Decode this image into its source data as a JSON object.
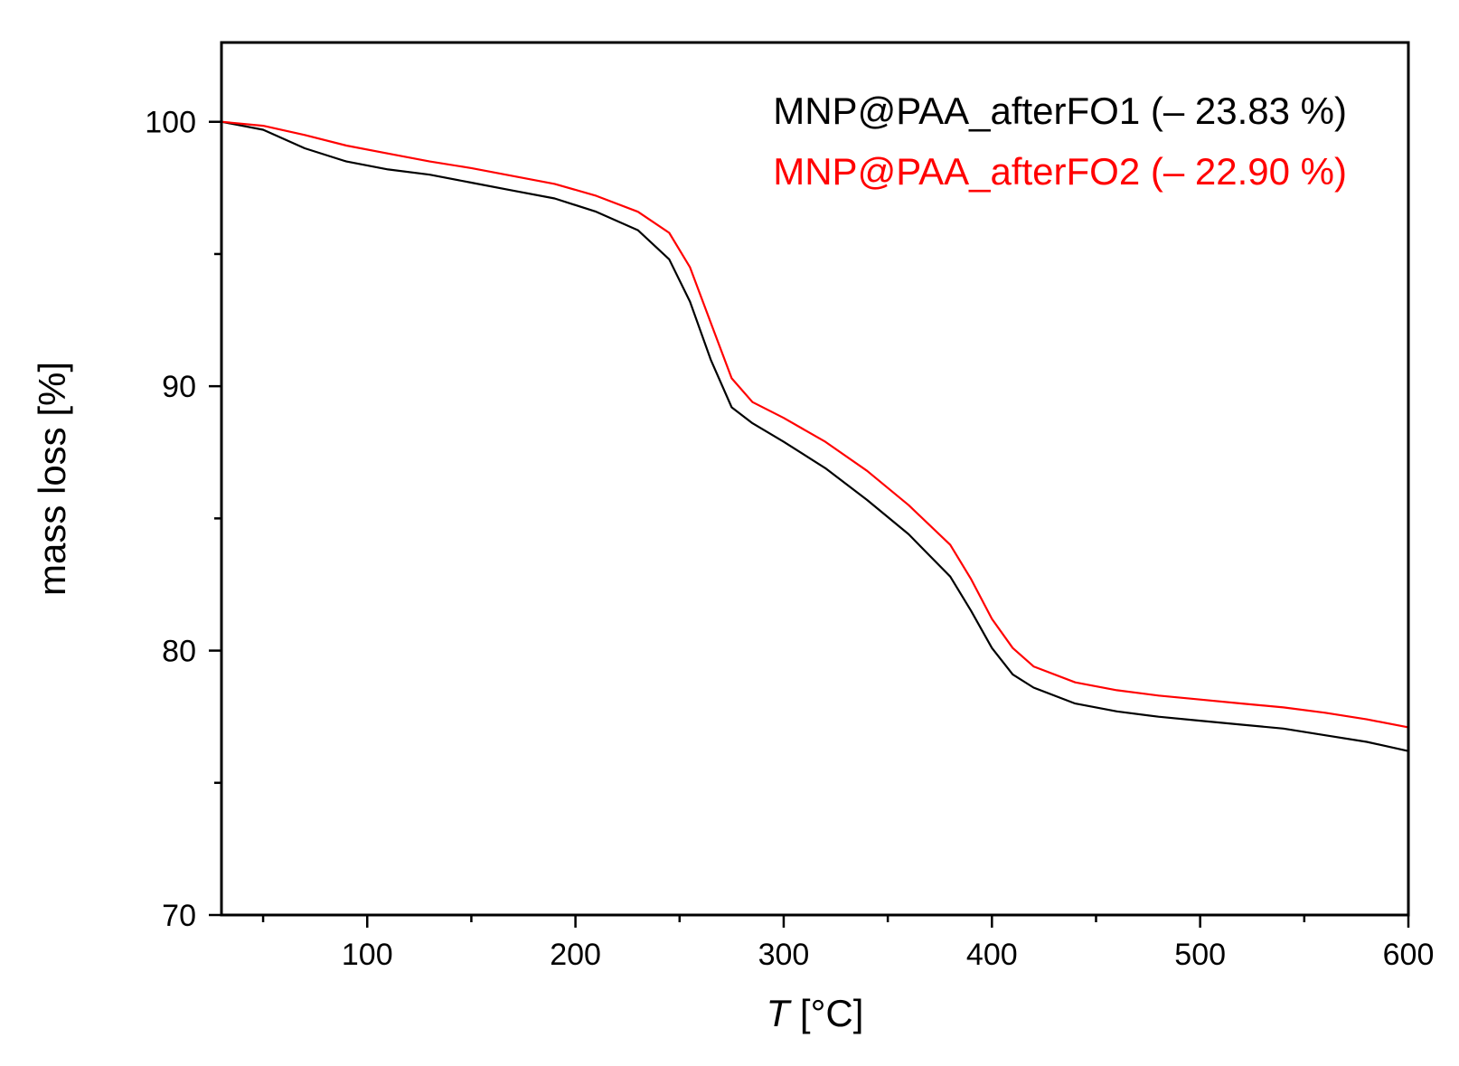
{
  "chart_data": {
    "type": "line",
    "title": "",
    "xlabel_italic": "T",
    "xlabel_rest": " [°C]",
    "ylabel": "mass loss [%]",
    "xlim": [
      30,
      600
    ],
    "ylim": [
      70,
      103
    ],
    "x_ticks": [
      100,
      200,
      300,
      400,
      500,
      600
    ],
    "x_minor_ticks": [
      50,
      150,
      250,
      350,
      450,
      550
    ],
    "y_ticks": [
      70,
      80,
      90,
      100
    ],
    "y_minor_ticks": [
      75,
      85,
      95
    ],
    "legend_placement": "top-right",
    "series": [
      {
        "name": "MNP@PAA_afterFO1 (– 23.83 %)",
        "color": "#000000",
        "x": [
          30,
          50,
          70,
          90,
          110,
          130,
          150,
          170,
          190,
          210,
          230,
          245,
          255,
          265,
          275,
          285,
          300,
          320,
          340,
          360,
          380,
          390,
          400,
          410,
          420,
          440,
          460,
          480,
          500,
          520,
          540,
          560,
          580,
          600
        ],
        "y": [
          100,
          99.7,
          99.0,
          98.5,
          98.2,
          98.0,
          97.7,
          97.4,
          97.1,
          96.6,
          95.9,
          94.8,
          93.2,
          91.0,
          89.2,
          88.6,
          87.9,
          86.9,
          85.7,
          84.4,
          82.8,
          81.5,
          80.1,
          79.1,
          78.6,
          78.0,
          77.7,
          77.5,
          77.35,
          77.2,
          77.05,
          76.8,
          76.55,
          76.2
        ]
      },
      {
        "name": "MNP@PAA_afterFO2 (– 22.90 %)",
        "color": "#ff0000",
        "x": [
          30,
          50,
          70,
          90,
          110,
          130,
          150,
          170,
          190,
          210,
          230,
          245,
          255,
          265,
          275,
          285,
          300,
          320,
          340,
          360,
          380,
          390,
          400,
          410,
          420,
          440,
          460,
          480,
          500,
          520,
          540,
          560,
          580,
          600
        ],
        "y": [
          100,
          99.85,
          99.5,
          99.1,
          98.8,
          98.5,
          98.25,
          97.95,
          97.65,
          97.2,
          96.6,
          95.8,
          94.5,
          92.4,
          90.3,
          89.4,
          88.8,
          87.9,
          86.8,
          85.5,
          84.0,
          82.7,
          81.2,
          80.1,
          79.4,
          78.8,
          78.5,
          78.3,
          78.15,
          78.0,
          77.85,
          77.65,
          77.4,
          77.1
        ]
      }
    ]
  }
}
